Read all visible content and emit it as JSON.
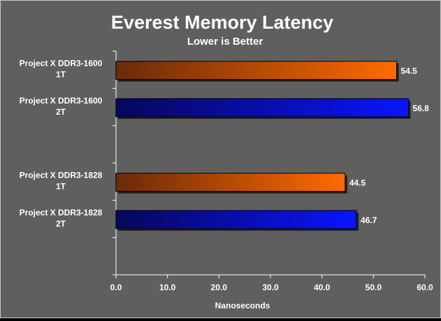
{
  "chart_data": {
    "type": "bar",
    "orientation": "horizontal",
    "title": "Everest Memory Latency",
    "subtitle": "Lower is Better",
    "xlabel": "Nanoseconds",
    "ylabel": "",
    "xlim": [
      0,
      60
    ],
    "x_ticks": [
      "0.0",
      "10.0",
      "20.0",
      "30.0",
      "40.0",
      "50.0",
      "60.0"
    ],
    "grid": false,
    "legend": "none",
    "groups": [
      {
        "bars": [
          {
            "label_lines": [
              "Project X DDR3-1600",
              "1T"
            ],
            "value": 54.5,
            "value_label": "54.5",
            "color": "orange"
          },
          {
            "label_lines": [
              "Project X DDR3-1600",
              "2T"
            ],
            "value": 56.8,
            "value_label": "56.8",
            "color": "blue"
          }
        ]
      },
      {
        "bars": [
          {
            "label_lines": [
              "Project X DDR3-1828",
              "1T"
            ],
            "value": 44.5,
            "value_label": "44.5",
            "color": "orange"
          },
          {
            "label_lines": [
              "Project X DDR3-1828",
              "2T"
            ],
            "value": 46.7,
            "value_label": "46.7",
            "color": "blue"
          }
        ]
      }
    ],
    "colors": {
      "background": "#5f5f5f",
      "text": "#ffffff",
      "axis": "#ffffff",
      "orange_start": "#6b2a08",
      "orange_end": "#ff6a00",
      "blue_start": "#07075a",
      "blue_end": "#0a14ff"
    }
  }
}
